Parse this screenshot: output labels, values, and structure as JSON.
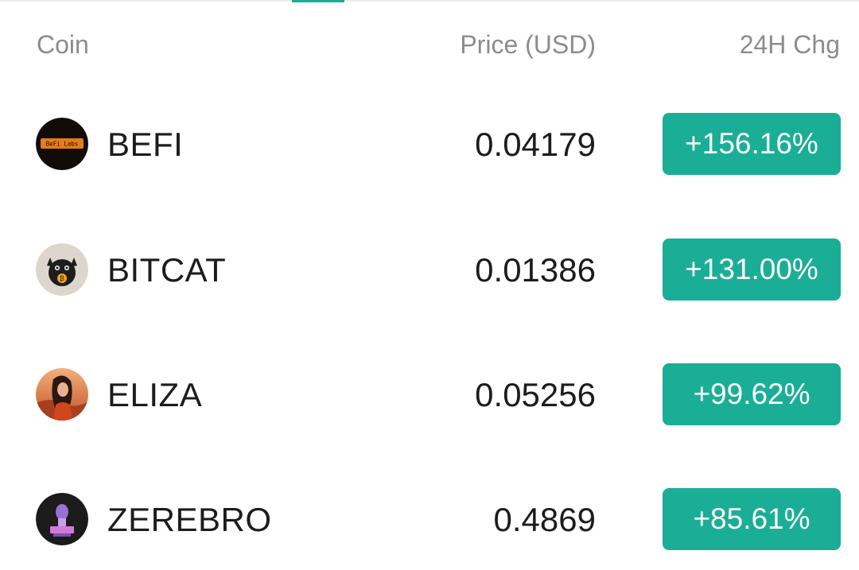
{
  "header": {
    "coin_label": "Coin",
    "price_label": "Price (USD)",
    "change_label": "24H Chg"
  },
  "colors": {
    "accent": "#1aae97",
    "text_primary": "#1c1c1c",
    "text_secondary": "#8c8c8c"
  },
  "rows": [
    {
      "name": "BEFI",
      "price": "0.04179",
      "change": "+156.16%",
      "icon": "befi-labs-logo",
      "logo_text": "BeFi Labs"
    },
    {
      "name": "BITCAT",
      "price": "0.01386",
      "change": "+131.00%",
      "icon": "bitcat-logo"
    },
    {
      "name": "ELIZA",
      "price": "0.05256",
      "change": "+99.62%",
      "icon": "eliza-avatar"
    },
    {
      "name": "ZEREBRO",
      "price": "0.4869",
      "change": "+85.61%",
      "icon": "zerebro-logo"
    }
  ]
}
